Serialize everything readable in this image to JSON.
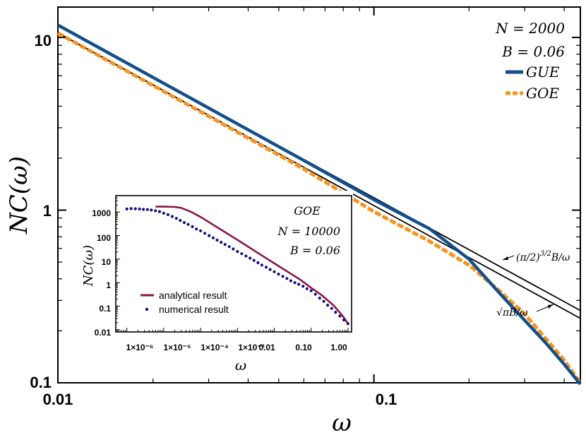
{
  "colors": {
    "gue": "#124f8c",
    "goe": "#f7931e",
    "analytical": "#8a1548",
    "numerical": "#12127a",
    "approx": "#000000"
  },
  "chart_data": [
    {
      "type": "line",
      "scale": "log-log",
      "xlabel": "ω",
      "ylabel": "NC(ω)",
      "xlim": [
        0.01,
        0.45
      ],
      "ylim": [
        0.1,
        15
      ],
      "xticks": [
        "0.01",
        "0.1"
      ],
      "yticks": [
        "0.1",
        "1",
        "10"
      ],
      "params": [
        "N = 2000",
        "B = 0.06"
      ],
      "legend": {
        "position": "top-right",
        "entries": [
          "GUE",
          "GOE"
        ]
      },
      "series": [
        {
          "name": "GUE",
          "x": [
            0.01,
            0.03,
            0.06,
            0.1,
            0.15,
            0.2,
            0.25,
            0.3,
            0.35,
            0.4,
            0.45
          ],
          "y": [
            11.8,
            3.9,
            1.94,
            1.15,
            0.78,
            0.52,
            0.33,
            0.23,
            0.17,
            0.128,
            0.098
          ]
        },
        {
          "name": "GOE",
          "x": [
            0.01,
            0.03,
            0.06,
            0.1,
            0.15,
            0.2,
            0.25,
            0.3,
            0.35,
            0.4,
            0.45
          ],
          "y": [
            10.6,
            3.5,
            1.73,
            0.98,
            0.66,
            0.48,
            0.34,
            0.25,
            0.18,
            0.135,
            0.1
          ]
        }
      ],
      "annotations": [
        {
          "label": "(π/2)^(3/2) B/ω",
          "coef": 0.118
        },
        {
          "label": "√π B/ω",
          "coef": 0.1063
        }
      ]
    },
    {
      "type": "line",
      "scale": "log-log",
      "inset": true,
      "xlabel": "ω",
      "ylabel": "NC(ω)",
      "xlim": [
        5e-07,
        1.25
      ],
      "ylim": [
        0.008,
        5000
      ],
      "xticks": [
        "1×10⁻⁶",
        "1×10⁻⁵",
        "1×10⁻⁴",
        "1×10⁻³",
        "0.01",
        "0.10",
        "1.00"
      ],
      "yticks": [
        "0.01",
        "0.1",
        "1",
        "10",
        "100",
        "1000"
      ],
      "params": [
        "GOE",
        "N = 10000",
        "B = 0.06"
      ],
      "legend": {
        "position": "bottom-left",
        "entries": [
          "analytical result",
          "numerical result"
        ]
      },
      "series": [
        {
          "name": "analytical result",
          "x": [
            6e-06,
            1e-05,
            2e-05,
            3e-05,
            5e-05,
            0.0001,
            0.001,
            0.01,
            0.05,
            0.1,
            0.2,
            0.4,
            0.7,
            1.0
          ],
          "y": [
            1700,
            1700,
            1650,
            1500,
            1100,
            620,
            66,
            6.6,
            1.35,
            0.6,
            0.28,
            0.11,
            0.04,
            0.018
          ]
        },
        {
          "name": "numerical result",
          "x": [
            1e-06,
            1.3e-06,
            1.7e-06,
            2.2e-06,
            2.8e-06,
            3.6e-06,
            4.6e-06,
            6e-06,
            7.7e-06,
            1e-05,
            1.3e-05,
            1.7e-05,
            2.2e-05,
            2.8e-05,
            3.6e-05,
            4.6e-05,
            6e-05,
            7.7e-05,
            0.0001,
            0.00013,
            0.00017,
            0.00022,
            0.00028,
            0.00036,
            0.00046,
            0.0006,
            0.00077,
            0.001,
            0.0013,
            0.0017,
            0.0022,
            0.0028,
            0.0036,
            0.0046,
            0.006,
            0.0077,
            0.01,
            0.013,
            0.017,
            0.022,
            0.028,
            0.036,
            0.046,
            0.06,
            0.077,
            0.1,
            0.13,
            0.17,
            0.22,
            0.28,
            0.36,
            0.46,
            0.6,
            0.77,
            1.0
          ],
          "y": [
            1350,
            1400,
            1380,
            1350,
            1300,
            1280,
            1220,
            1150,
            1050,
            900,
            780,
            650,
            540,
            440,
            360,
            300,
            240,
            190,
            160,
            125,
            100,
            80,
            64,
            52,
            42,
            34,
            27,
            21,
            17,
            13.5,
            11,
            8.8,
            7,
            5.6,
            4.5,
            3.6,
            2.9,
            2.3,
            1.85,
            1.5,
            1.2,
            1.0,
            0.85,
            0.7,
            0.55,
            0.45,
            0.32,
            0.22,
            0.16,
            0.11,
            0.08,
            0.055,
            0.038,
            0.026,
            0.018
          ]
        }
      ]
    }
  ]
}
